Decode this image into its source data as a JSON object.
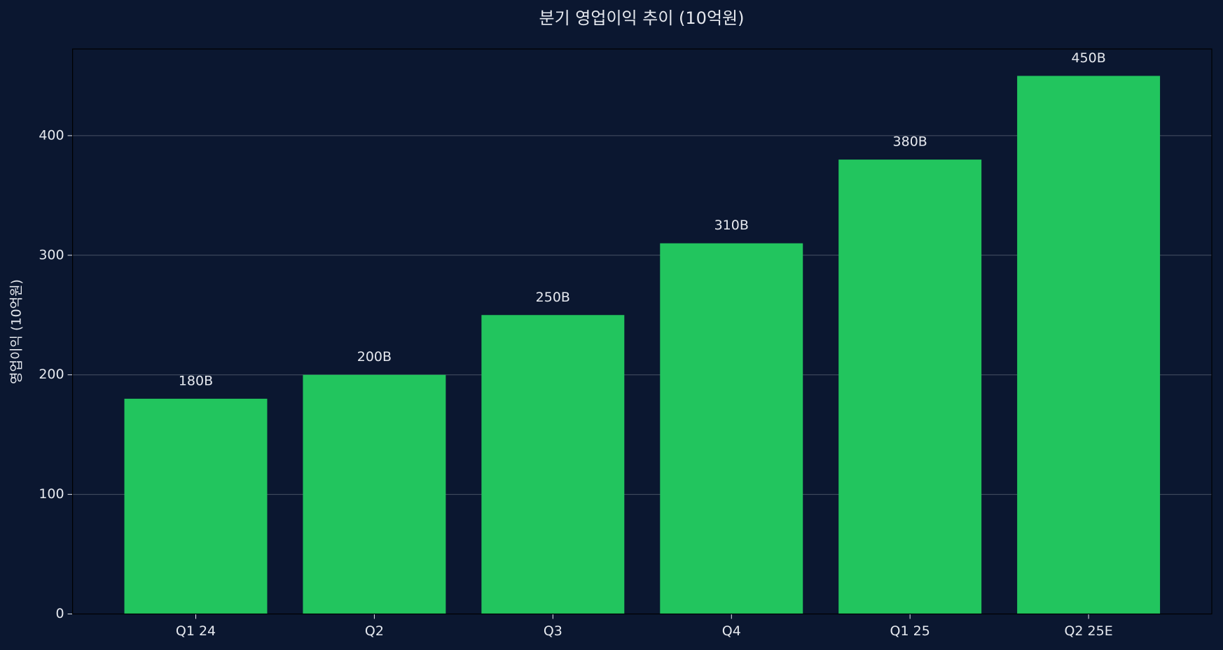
{
  "chart_data": {
    "type": "bar",
    "title": "분기 영업이익 추이 (10억원)",
    "y_label": "영업이익 (10억원)",
    "categories": [
      "Q1 24",
      "Q2",
      "Q3",
      "Q4",
      "Q1 25",
      "Q2 25E"
    ],
    "values": [
      180,
      200,
      250,
      310,
      380,
      450
    ],
    "value_labels": [
      "180B",
      "200B",
      "250B",
      "310B",
      "380B",
      "450B"
    ],
    "color": "#22c55e",
    "ylim": [
      0,
      472.5
    ],
    "yticks": [
      0,
      100,
      200,
      300,
      400
    ],
    "grid": true
  }
}
